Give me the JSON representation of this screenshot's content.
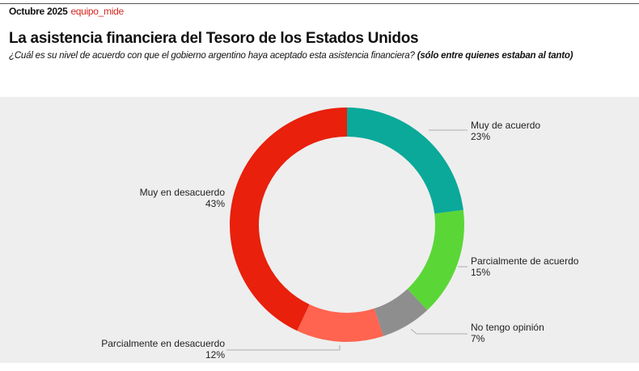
{
  "header": {
    "date": "Octubre 2025",
    "brand": "equipo_mide"
  },
  "title": "La asistencia financiera del Tesoro de los Estados Unidos",
  "subtitle": {
    "question": "¿Cuál es su nivel de acuerdo con que el gobierno argentino haya aceptado esta asistencia financiera?",
    "note": "(sólo entre quienes estaban al tanto)"
  },
  "chart_data": {
    "type": "pie",
    "donut": true,
    "categories": [
      "Muy de acuerdo",
      "Parcialmente de acuerdo",
      "No tengo opinión",
      "Parcialmente en desacuerdo",
      "Muy en desacuerdo"
    ],
    "values": [
      23,
      15,
      7,
      12,
      43
    ],
    "labels": [
      "23%",
      "15%",
      "7%",
      "12%",
      "43%"
    ],
    "colors": [
      "#0aa99a",
      "#5bd637",
      "#8e8e8e",
      "#ff6450",
      "#e8200c"
    ],
    "legend": "labels outside with leader lines"
  }
}
